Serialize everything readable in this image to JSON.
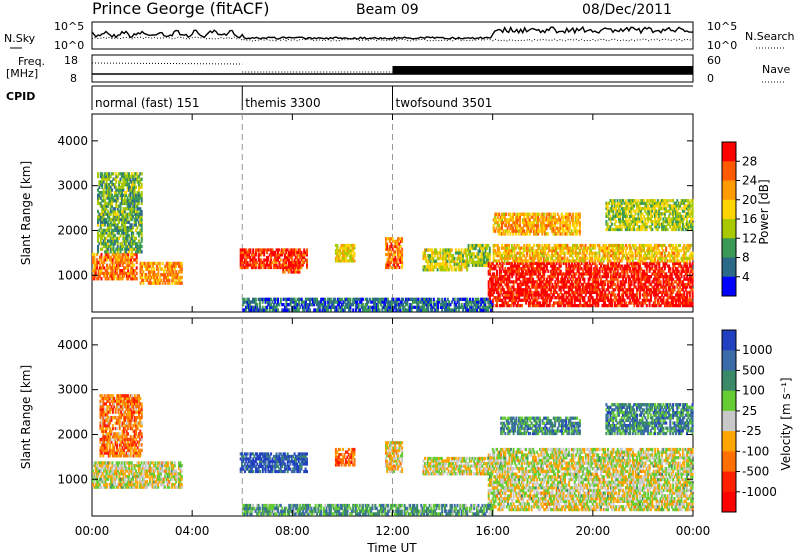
{
  "header": {
    "station": "Prince George (fitACF)",
    "beam": "Beam 09",
    "date": "08/Dec/2011"
  },
  "noise_panel": {
    "left_label": "N.Sky",
    "right_label": "N.Search",
    "left_ticks": [
      "10^5",
      "10^0"
    ],
    "right_ticks": [
      "10^5",
      "10^0"
    ]
  },
  "freq_panel": {
    "left_label_1": "Freq.",
    "left_label_2": "[MHz]",
    "right_label": "Nave",
    "left_ticks": [
      "18",
      "8"
    ],
    "right_ticks": [
      "60",
      "0"
    ]
  },
  "cpid_panel": {
    "label": "CPID",
    "segments": [
      {
        "start_hour": 0,
        "text": "normal (fast) 151"
      },
      {
        "start_hour": 6,
        "text": "themis 3300"
      },
      {
        "start_hour": 12,
        "text": "twofsound 3501"
      }
    ]
  },
  "power_scale": {
    "title": "Power [dB]",
    "ticks": [
      "28",
      "24",
      "20",
      "16",
      "12",
      "8",
      "4"
    ],
    "colors": [
      "#ff0000",
      "#ff5a00",
      "#ff9a00",
      "#ffd400",
      "#a8c800",
      "#3a9a55",
      "#2a6a88",
      "#0000ff"
    ]
  },
  "velocity_scale": {
    "title": "Velocity [m s⁻¹]",
    "ticks": [
      "1000",
      "500",
      "100",
      "25",
      "-25",
      "-100",
      "-500",
      "-1000"
    ],
    "colors": [
      "#2040c0",
      "#3a6aa8",
      "#3a8a6a",
      "#66cc33",
      "#c8c8c8",
      "#ffa500",
      "#ff7000",
      "#ff2000",
      "#ff0000"
    ]
  },
  "chart_data": {
    "type": "heatmap",
    "xlabel": "Time UT",
    "ylabel": "Slant Range [km]",
    "x_ticks": [
      "00:00",
      "04:00",
      "08:00",
      "12:00",
      "16:00",
      "20:00",
      "00:00"
    ],
    "y_ticks": [
      1000,
      2000,
      3000,
      4000
    ],
    "xlim_hours": [
      0,
      24
    ],
    "ylim_km": [
      180,
      4600
    ],
    "panels": [
      {
        "name": "power",
        "regions": [
          {
            "t0": 0.0,
            "t1": 1.8,
            "r0": 900,
            "r1": 1500,
            "level": 0.75
          },
          {
            "t0": 0.2,
            "t1": 2.0,
            "r0": 1500,
            "r1": 3300,
            "level": 0.35
          },
          {
            "t0": 1.9,
            "t1": 3.6,
            "r0": 800,
            "r1": 1300,
            "level": 0.7
          },
          {
            "t0": 5.9,
            "t1": 8.6,
            "r0": 1150,
            "r1": 1600,
            "level": 0.9
          },
          {
            "t0": 7.6,
            "t1": 8.3,
            "r0": 1050,
            "r1": 1250,
            "level": 0.85
          },
          {
            "t0": 9.7,
            "t1": 10.5,
            "r0": 1300,
            "r1": 1700,
            "level": 0.55
          },
          {
            "t0": 11.7,
            "t1": 12.4,
            "r0": 1150,
            "r1": 1850,
            "level": 0.75
          },
          {
            "t0": 13.2,
            "t1": 15.0,
            "r0": 1100,
            "r1": 1600,
            "level": 0.5
          },
          {
            "t0": 15.0,
            "t1": 15.9,
            "r0": 1200,
            "r1": 1700,
            "level": 0.4
          },
          {
            "t0": 15.8,
            "t1": 24.0,
            "r0": 300,
            "r1": 1300,
            "level": 0.95
          },
          {
            "t0": 16.0,
            "t1": 24.0,
            "r0": 1300,
            "r1": 1700,
            "level": 0.6
          },
          {
            "t0": 16.0,
            "t1": 19.5,
            "r0": 1900,
            "r1": 2400,
            "level": 0.65
          },
          {
            "t0": 20.5,
            "t1": 24.0,
            "r0": 2000,
            "r1": 2700,
            "level": 0.45
          },
          {
            "t0": 6.0,
            "t1": 16.0,
            "r0": 200,
            "r1": 500,
            "level": 0.2
          }
        ]
      },
      {
        "name": "velocity",
        "regions": [
          {
            "t0": 0.0,
            "t1": 3.6,
            "r0": 800,
            "r1": 1400,
            "level": 0.5
          },
          {
            "t0": 0.3,
            "t1": 2.0,
            "r0": 1500,
            "r1": 2900,
            "level": 0.7
          },
          {
            "t0": 5.9,
            "t1": 8.6,
            "r0": 1150,
            "r1": 1600,
            "level": 0.1
          },
          {
            "t0": 9.7,
            "t1": 10.5,
            "r0": 1300,
            "r1": 1700,
            "level": 0.75
          },
          {
            "t0": 11.7,
            "t1": 12.4,
            "r0": 1150,
            "r1": 1850,
            "level": 0.55
          },
          {
            "t0": 13.2,
            "t1": 16.0,
            "r0": 1100,
            "r1": 1500,
            "level": 0.5
          },
          {
            "t0": 15.8,
            "t1": 24.0,
            "r0": 300,
            "r1": 1700,
            "level": 0.5
          },
          {
            "t0": 16.3,
            "t1": 19.5,
            "r0": 2000,
            "r1": 2400,
            "level": 0.25
          },
          {
            "t0": 20.5,
            "t1": 24.0,
            "r0": 2000,
            "r1": 2700,
            "level": 0.25
          },
          {
            "t0": 6.0,
            "t1": 16.0,
            "r0": 200,
            "r1": 450,
            "level": 0.3
          }
        ]
      }
    ]
  }
}
